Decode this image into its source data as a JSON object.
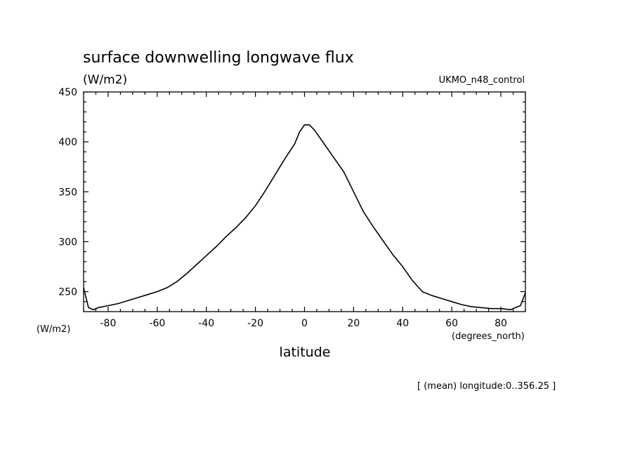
{
  "chart_data": {
    "type": "line",
    "title": "surface downwelling longwave flux",
    "units": "(W/m2)",
    "dataset": "UKMO_n48_control",
    "ylabel": "(W/m2)",
    "xlabel": "latitude",
    "xunits": "(degrees_north)",
    "footnote": "[ (mean) longitude:0..356.25 ]",
    "xlim": [
      -90,
      90
    ],
    "ylim": [
      230,
      450
    ],
    "xticks": [
      -80,
      -60,
      -40,
      -20,
      0,
      20,
      40,
      60,
      80
    ],
    "xtick_labels": [
      "-80",
      "-60",
      "-40",
      "-20",
      "0",
      "20",
      "40",
      "60",
      "80"
    ],
    "yticks": [
      250,
      300,
      350,
      400,
      450
    ],
    "ytick_labels": [
      "250",
      "300",
      "350",
      "400",
      "450"
    ],
    "grid": false,
    "series": [
      {
        "x": [
          -90,
          -88,
          -86,
          -84,
          -82,
          -80,
          -76,
          -72,
          -68,
          -64,
          -60,
          -56,
          -52,
          -48,
          -44,
          -40,
          -36,
          -32,
          -28,
          -24,
          -20,
          -16,
          -12,
          -8,
          -4,
          -2,
          0,
          2,
          4,
          8,
          12,
          16,
          20,
          24,
          28,
          32,
          36,
          40,
          44,
          48,
          52,
          56,
          60,
          64,
          68,
          72,
          76,
          80,
          84,
          86,
          88,
          90
        ],
        "y": [
          254,
          234,
          232,
          234,
          235,
          236,
          238,
          241,
          244,
          247,
          250,
          254,
          260,
          268,
          277,
          286,
          295,
          305,
          314,
          324,
          336,
          351,
          367,
          383,
          398,
          410,
          417,
          417,
          412,
          398,
          384,
          370,
          350,
          330,
          315,
          301,
          287,
          275,
          261,
          250,
          246,
          243,
          240,
          237,
          235,
          234,
          233,
          233,
          232,
          234,
          236,
          249
        ]
      }
    ]
  }
}
